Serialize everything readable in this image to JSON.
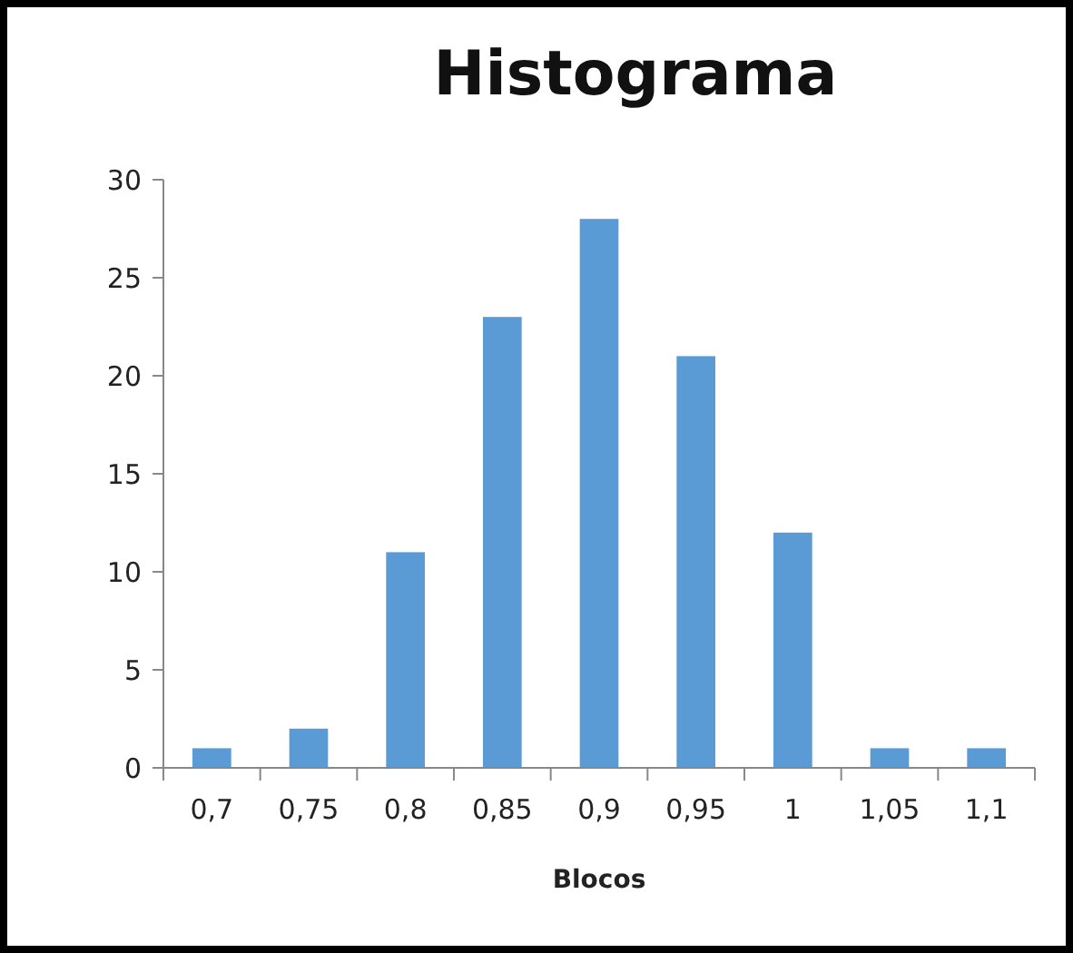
{
  "chart_data": {
    "type": "bar",
    "title": "Histograma",
    "xlabel": "Blocos",
    "categories": [
      "0,7",
      "0,75",
      "0,8",
      "0,85",
      "0,9",
      "0,95",
      "1",
      "1,05",
      "1,1"
    ],
    "values": [
      1,
      2,
      11,
      23,
      28,
      21,
      12,
      1,
      1
    ],
    "color": "#5b9bd5",
    "ylim": [
      0,
      30
    ],
    "yticks": [
      0,
      5,
      10,
      15,
      20,
      25,
      30
    ],
    "grid": false
  }
}
